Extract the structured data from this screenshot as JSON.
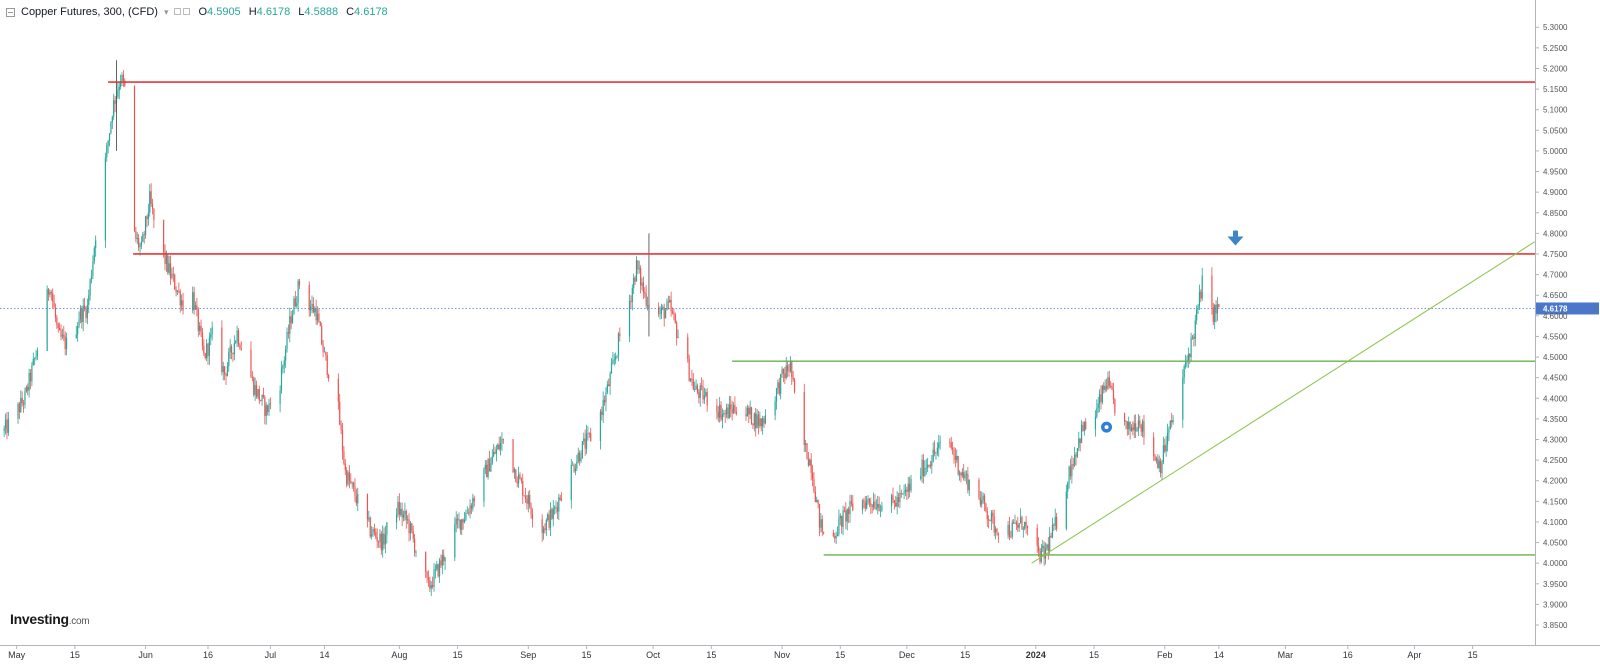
{
  "header": {
    "title": "Copper Futures, 300, (CFD)",
    "open_label": "O",
    "open": "4.5905",
    "high_label": "H",
    "high": "4.6178",
    "low_label": "L",
    "low": "4.5888",
    "close_label": "C",
    "close": "4.6178"
  },
  "logo": {
    "brand": "Investing",
    "suffix": ".com"
  },
  "last_price_label": "4.6178",
  "colors": {
    "up": "#26a69a",
    "down": "#ef5350",
    "resistance": "#e53935",
    "support": "#6ab04c",
    "trendline": "#8bc34a",
    "price_line": "#4a77c9",
    "arrow": "#3d85c6",
    "marker": "#2f7ed8"
  },
  "chart_data": {
    "type": "candlestick",
    "title": "Copper Futures, 300, (CFD)",
    "x_start": "2023-04-27",
    "x_end": "2024-04-30",
    "ylim": [
      3.85,
      5.32
    ],
    "y_ticks": [
      "3.8500",
      "3.9000",
      "3.9500",
      "4.0000",
      "4.0500",
      "4.1000",
      "4.1500",
      "4.2000",
      "4.2500",
      "4.3000",
      "4.3500",
      "4.4000",
      "4.4500",
      "4.5000",
      "4.5500",
      "4.6000",
      "4.6500",
      "4.7000",
      "4.7500",
      "4.8000",
      "4.8500",
      "4.9000",
      "4.9500",
      "5.0000",
      "5.0500",
      "5.1000",
      "5.1500",
      "5.2000",
      "5.2500",
      "5.3000"
    ],
    "x_ticks": [
      {
        "date": "2023-05-01",
        "label": "May",
        "bold": false
      },
      {
        "date": "2023-05-15",
        "label": "15",
        "bold": false
      },
      {
        "date": "2023-06-01",
        "label": "Jun",
        "bold": false
      },
      {
        "date": "2023-06-16",
        "label": "16",
        "bold": false
      },
      {
        "date": "2023-07-01",
        "label": "Jul",
        "bold": false
      },
      {
        "date": "2023-07-14",
        "label": "14",
        "bold": false
      },
      {
        "date": "2023-08-01",
        "label": "Aug",
        "bold": false
      },
      {
        "date": "2023-08-15",
        "label": "15",
        "bold": false
      },
      {
        "date": "2023-09-01",
        "label": "Sep",
        "bold": false
      },
      {
        "date": "2023-09-15",
        "label": "15",
        "bold": false
      },
      {
        "date": "2023-10-01",
        "label": "Oct",
        "bold": false
      },
      {
        "date": "2023-10-15",
        "label": "15",
        "bold": false
      },
      {
        "date": "2023-11-01",
        "label": "Nov",
        "bold": false
      },
      {
        "date": "2023-11-15",
        "label": "15",
        "bold": false
      },
      {
        "date": "2023-12-01",
        "label": "Dec",
        "bold": false
      },
      {
        "date": "2023-12-15",
        "label": "15",
        "bold": false
      },
      {
        "date": "2024-01-01",
        "label": "2024",
        "bold": true
      },
      {
        "date": "2024-01-15",
        "label": "15",
        "bold": false
      },
      {
        "date": "2024-02-01",
        "label": "Feb",
        "bold": false
      },
      {
        "date": "2024-02-14",
        "label": "14",
        "bold": false
      },
      {
        "date": "2024-03-01",
        "label": "Mar",
        "bold": false
      },
      {
        "date": "2024-03-16",
        "label": "16",
        "bold": false
      },
      {
        "date": "2024-04-01",
        "label": "Apr",
        "bold": false
      },
      {
        "date": "2024-04-15",
        "label": "15",
        "bold": false
      }
    ],
    "price_path": [
      [
        "2023-04-28",
        4.32
      ],
      [
        "2023-05-03",
        4.4
      ],
      [
        "2023-05-06",
        4.52
      ],
      [
        "2023-05-09",
        4.68
      ],
      [
        "2023-05-11",
        4.55
      ],
      [
        "2023-05-14",
        4.52
      ],
      [
        "2023-05-16",
        4.6
      ],
      [
        "2023-05-18",
        4.62
      ],
      [
        "2023-05-20",
        4.8
      ],
      [
        "2023-05-22",
        4.95
      ],
      [
        "2023-05-24",
        5.1
      ],
      [
        "2023-05-26",
        5.18
      ],
      [
        "2023-05-28",
        5.12
      ],
      [
        "2023-05-29",
        4.8
      ],
      [
        "2023-05-31",
        4.76
      ],
      [
        "2023-06-02",
        4.88
      ],
      [
        "2023-06-04",
        4.78
      ],
      [
        "2023-06-07",
        4.7
      ],
      [
        "2023-06-10",
        4.63
      ],
      [
        "2023-06-12",
        4.67
      ],
      [
        "2023-06-15",
        4.5
      ],
      [
        "2023-06-17",
        4.55
      ],
      [
        "2023-06-20",
        4.46
      ],
      [
        "2023-06-23",
        4.56
      ],
      [
        "2023-06-27",
        4.43
      ],
      [
        "2023-06-30",
        4.37
      ],
      [
        "2023-07-03",
        4.42
      ],
      [
        "2023-07-06",
        4.6
      ],
      [
        "2023-07-08",
        4.68
      ],
      [
        "2023-07-10",
        4.63
      ],
      [
        "2023-07-12",
        4.61
      ],
      [
        "2023-07-14",
        4.5
      ],
      [
        "2023-07-17",
        4.4
      ],
      [
        "2023-07-19",
        4.22
      ],
      [
        "2023-07-22",
        4.15
      ],
      [
        "2023-07-25",
        4.08
      ],
      [
        "2023-07-28",
        4.05
      ],
      [
        "2023-07-31",
        4.14
      ],
      [
        "2023-08-03",
        4.1
      ],
      [
        "2023-08-06",
        4.0
      ],
      [
        "2023-08-08",
        3.94
      ],
      [
        "2023-08-11",
        4.0
      ],
      [
        "2023-08-14",
        4.08
      ],
      [
        "2023-08-17",
        4.12
      ],
      [
        "2023-08-20",
        4.18
      ],
      [
        "2023-08-23",
        4.25
      ],
      [
        "2023-08-26",
        4.3
      ],
      [
        "2023-08-29",
        4.22
      ],
      [
        "2023-09-01",
        4.15
      ],
      [
        "2023-09-04",
        4.08
      ],
      [
        "2023-09-07",
        4.12
      ],
      [
        "2023-09-10",
        4.2
      ],
      [
        "2023-09-14",
        4.28
      ],
      [
        "2023-09-17",
        4.32
      ],
      [
        "2023-09-20",
        4.42
      ],
      [
        "2023-09-23",
        4.55
      ],
      [
        "2023-09-25",
        4.62
      ],
      [
        "2023-09-27",
        4.72
      ],
      [
        "2023-09-29",
        4.65
      ],
      [
        "2023-10-02",
        4.6
      ],
      [
        "2023-10-05",
        4.62
      ],
      [
        "2023-10-08",
        4.52
      ],
      [
        "2023-10-11",
        4.42
      ],
      [
        "2023-10-14",
        4.4
      ],
      [
        "2023-10-18",
        4.36
      ],
      [
        "2023-10-21",
        4.38
      ],
      [
        "2023-10-24",
        4.36
      ],
      [
        "2023-10-27",
        4.34
      ],
      [
        "2023-10-30",
        4.4
      ],
      [
        "2023-11-01",
        4.45
      ],
      [
        "2023-11-03",
        4.48
      ],
      [
        "2023-11-05",
        4.32
      ],
      [
        "2023-11-08",
        4.24
      ],
      [
        "2023-11-10",
        4.1
      ],
      [
        "2023-11-12",
        4.04
      ],
      [
        "2023-11-15",
        4.1
      ],
      [
        "2023-11-19",
        4.15
      ],
      [
        "2023-11-23",
        4.15
      ],
      [
        "2023-11-27",
        4.14
      ],
      [
        "2023-11-30",
        4.16
      ],
      [
        "2023-12-04",
        4.22
      ],
      [
        "2023-12-08",
        4.27
      ],
      [
        "2023-12-11",
        4.3
      ],
      [
        "2023-12-14",
        4.22
      ],
      [
        "2023-12-18",
        4.17
      ],
      [
        "2023-12-22",
        4.09
      ],
      [
        "2023-12-26",
        4.08
      ],
      [
        "2023-12-29",
        4.1
      ],
      [
        "2024-01-01",
        4.02
      ],
      [
        "2024-01-03",
        4.02
      ],
      [
        "2024-01-06",
        4.1
      ],
      [
        "2024-01-09",
        4.22
      ],
      [
        "2024-01-12",
        4.32
      ],
      [
        "2024-01-15",
        4.35
      ],
      [
        "2024-01-18",
        4.44
      ],
      [
        "2024-01-20",
        4.38
      ],
      [
        "2024-01-23",
        4.32
      ],
      [
        "2024-01-26",
        4.35
      ],
      [
        "2024-01-28",
        4.28
      ],
      [
        "2024-01-31",
        4.24
      ],
      [
        "2024-02-02",
        4.32
      ],
      [
        "2024-02-04",
        4.38
      ],
      [
        "2024-02-06",
        4.48
      ],
      [
        "2024-02-08",
        4.56
      ],
      [
        "2024-02-10",
        4.68
      ],
      [
        "2024-02-11",
        4.63
      ],
      [
        "2024-02-12",
        4.6
      ],
      [
        "2024-02-14",
        4.62
      ]
    ],
    "levels": [
      {
        "name": "upper-resistance",
        "value": 5.167,
        "from": "2023-05-23",
        "kind": "resistance"
      },
      {
        "name": "mid-resistance",
        "value": 4.75,
        "from": "2023-05-29",
        "kind": "resistance"
      },
      {
        "name": "mid-support",
        "value": 4.49,
        "from": "2023-10-20",
        "kind": "support"
      },
      {
        "name": "lower-support",
        "value": 4.02,
        "from": "2023-11-11",
        "kind": "support"
      }
    ],
    "trendline": {
      "start": [
        "2023-12-31",
        4.0
      ],
      "end": [
        "2024-04-30",
        4.78
      ]
    },
    "last_price": 4.6178,
    "annotations": [
      {
        "type": "down-arrow",
        "date": "2024-02-18",
        "value": 4.79
      },
      {
        "type": "marker",
        "date": "2024-01-18",
        "value": 4.33
      }
    ]
  }
}
